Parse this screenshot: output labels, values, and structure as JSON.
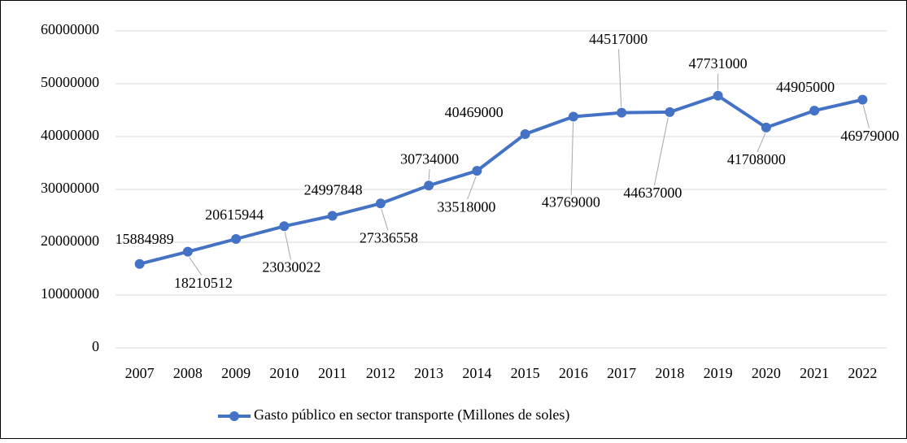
{
  "chart_data": {
    "type": "line",
    "categories": [
      "2007",
      "2008",
      "2009",
      "2010",
      "2011",
      "2012",
      "2013",
      "2014",
      "2015",
      "2016",
      "2017",
      "2018",
      "2019",
      "2020",
      "2021",
      "2022"
    ],
    "series": [
      {
        "name": "Gasto público en sector transporte (Millones de soles)",
        "color": "#4472c4",
        "values": [
          15884989,
          18210512,
          20615944,
          23030022,
          24997848,
          27336558,
          30734000,
          33518000,
          40469000,
          43769000,
          44517000,
          44637000,
          47731000,
          41708000,
          44905000,
          46979000
        ]
      }
    ],
    "ylim": [
      0,
      60000000
    ],
    "yticks": [
      0,
      10000000,
      20000000,
      30000000,
      40000000,
      50000000,
      60000000
    ],
    "grid": true,
    "data_labels": true,
    "legend": "bottom"
  }
}
